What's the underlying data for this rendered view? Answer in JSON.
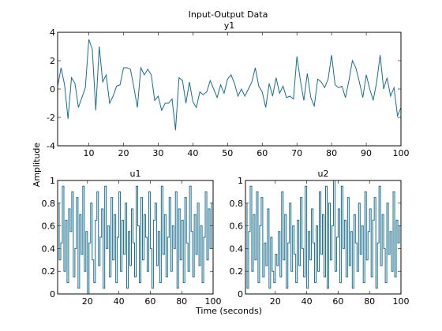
{
  "figure": {
    "suptitle": "Input-Output Data",
    "ylabel": "Amplitude",
    "xlabel": "Time (seconds)",
    "line_color": "#1a6e8e",
    "background": "#ffffff"
  },
  "chart_data": [
    {
      "type": "line",
      "title": "y1",
      "step": false,
      "xlim": [
        1,
        100
      ],
      "ylim": [
        -4,
        4
      ],
      "xticks": [
        10,
        20,
        30,
        40,
        50,
        60,
        70,
        80,
        90,
        100
      ],
      "yticks": [
        -4,
        -2,
        0,
        2,
        4
      ],
      "x_start": 1,
      "values": [
        0.2,
        1.5,
        0.3,
        -2.1,
        0.8,
        0.4,
        -1.3,
        -0.6,
        0.1,
        3.5,
        2.8,
        -1.5,
        3.0,
        0.5,
        1.0,
        -1.0,
        -0.5,
        0.2,
        0.3,
        1.5,
        1.5,
        1.4,
        0.1,
        -1.3,
        1.5,
        1.0,
        1.4,
        1.0,
        -0.8,
        -0.5,
        -1.5,
        -1.0,
        -1.0,
        -0.7,
        -2.9,
        0.8,
        0.6,
        -1.0,
        0.5,
        -0.9,
        -1.3,
        -0.2,
        -0.4,
        -0.2,
        0.6,
        0.0,
        -0.6,
        0.3,
        -0.3,
        0.7,
        1.0,
        0.4,
        -0.5,
        0.0,
        -0.5,
        0.0,
        0.5,
        1.5,
        0.2,
        -0.2,
        -1.3,
        0.4,
        -0.5,
        0.8,
        -0.3,
        0.2,
        -0.6,
        -0.5,
        -0.7,
        2.3,
        0.6,
        -0.8,
        1.1,
        -0.6,
        -1.2,
        0.7,
        0.5,
        0.1,
        0.7,
        2.4,
        0.3,
        0.1,
        0.2,
        -0.6,
        0.6,
        2.0,
        1.5,
        0.5,
        -0.6,
        1.0,
        0.0,
        -0.8,
        0.5,
        2.4,
        0.0,
        0.8,
        -0.5,
        0.1,
        -1.9,
        -1.3
      ]
    },
    {
      "type": "line",
      "title": "u1",
      "step": true,
      "xlim": [
        1,
        100
      ],
      "ylim": [
        0,
        1
      ],
      "xticks": [
        20,
        40,
        60,
        80,
        100
      ],
      "yticks": [
        0,
        0.2,
        0.4,
        0.6,
        0.8,
        1
      ],
      "x_start": 1,
      "values": [
        0.8,
        0.3,
        0.45,
        0.95,
        0.2,
        0.65,
        0.1,
        0.75,
        0.55,
        0.9,
        0.15,
        0.4,
        0.85,
        0.05,
        0.7,
        0.35,
        0.95,
        0.2,
        0.55,
        0.0,
        0.45,
        0.8,
        0.3,
        0.1,
        0.65,
        0.9,
        0.25,
        0.5,
        0.75,
        0.05,
        0.95,
        0.4,
        0.6,
        0.15,
        0.85,
        0.3,
        0.7,
        0.1,
        0.5,
        0.9,
        0.2,
        0.65,
        0.35,
        0.8,
        0.05,
        0.55,
        0.25,
        0.75,
        0.45,
        0.15,
        0.95,
        0.6,
        0.1,
        0.85,
        0.3,
        0.7,
        0.5,
        0.2,
        0.9,
        0.4,
        0.05,
        0.65,
        0.8,
        0.25,
        0.55,
        0.1,
        0.95,
        0.35,
        0.7,
        0.15,
        0.5,
        0.85,
        0.2,
        0.6,
        0.4,
        0.9,
        0.05,
        0.75,
        0.3,
        0.65,
        0.1,
        0.85,
        0.45,
        0.2,
        0.95,
        0.55,
        0.15,
        0.7,
        0.35,
        0.8,
        0.25,
        0.6,
        0.1,
        0.5,
        0.9,
        0.3,
        0.75,
        0.4,
        0.8,
        0.78
      ]
    },
    {
      "type": "line",
      "title": "u2",
      "step": true,
      "xlim": [
        1,
        100
      ],
      "ylim": [
        0,
        1
      ],
      "xticks": [
        20,
        40,
        60,
        80,
        100
      ],
      "yticks": [
        0,
        0.2,
        0.4,
        0.6,
        0.8,
        1
      ],
      "x_start": 1,
      "values": [
        0.8,
        0.05,
        0.55,
        0.95,
        0.2,
        0.7,
        0.3,
        0.9,
        0.1,
        0.6,
        0.85,
        0.15,
        0.45,
        0.25,
        0.75,
        0.05,
        0.5,
        0.2,
        0.1,
        0.35,
        0.25,
        0.55,
        0.15,
        0.9,
        0.3,
        0.7,
        0.05,
        0.45,
        0.8,
        0.2,
        0.6,
        0.35,
        0.1,
        0.65,
        0.25,
        0.85,
        0.4,
        0.15,
        0.95,
        0.05,
        0.55,
        0.3,
        0.75,
        0.45,
        0.1,
        0.6,
        0.2,
        0.9,
        0.35,
        0.7,
        0.15,
        0.95,
        0.05,
        0.8,
        0.3,
        0.6,
        1.0,
        0.2,
        0.5,
        0.75,
        0.1,
        0.95,
        0.4,
        0.65,
        0.15,
        0.85,
        0.25,
        0.55,
        0.05,
        0.7,
        0.45,
        0.2,
        0.8,
        0.35,
        0.6,
        0.1,
        0.9,
        0.3,
        0.55,
        0.75,
        0.15,
        0.65,
        0.85,
        0.05,
        0.45,
        0.95,
        0.25,
        0.7,
        0.4,
        0.1,
        0.8,
        0.35,
        0.55,
        0.2,
        0.9,
        0.15,
        0.65,
        0.45,
        0.6,
        0.4
      ]
    }
  ]
}
